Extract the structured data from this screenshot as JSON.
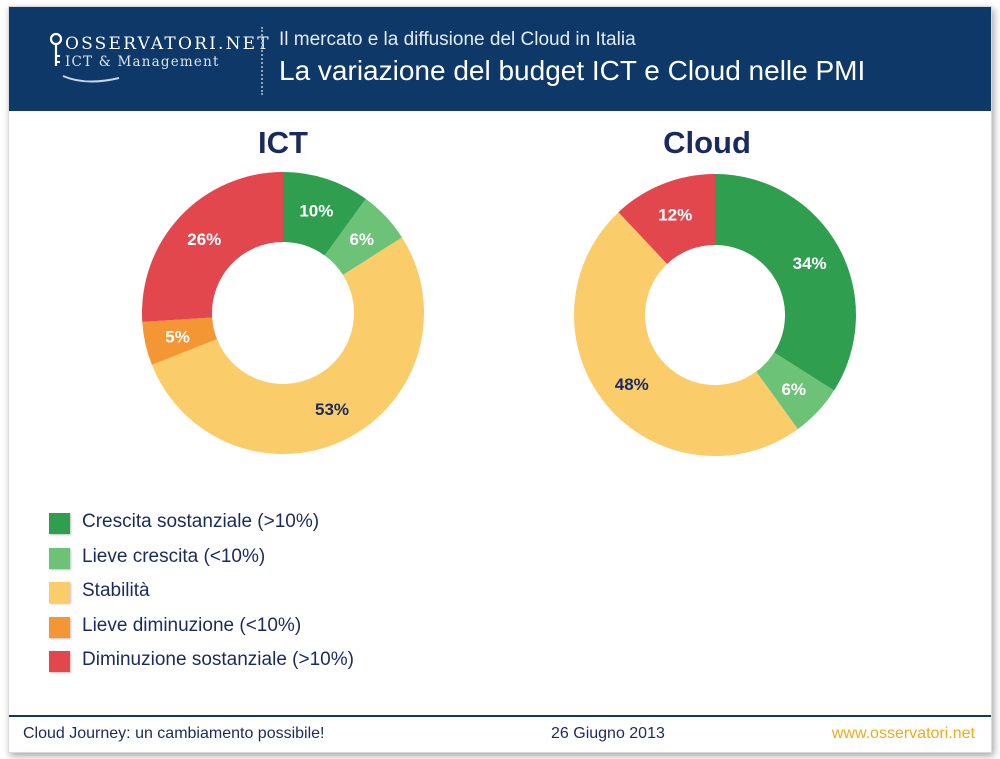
{
  "header": {
    "logo": {
      "brand": "OSSERVATORI.NET",
      "sub": "ICT & Management"
    },
    "subtitle": "Il mercato e la diffusione del Cloud in Italia",
    "title": "La variazione del budget ICT e Cloud nelle PMI"
  },
  "colors": {
    "header_bg": "#0d3868",
    "crescita_sostanziale": "#2f9e4f",
    "lieve_crescita": "#6cc276",
    "stabilita": "#fbcc6a",
    "lieve_diminuzione": "#f49634",
    "diminuzione_sostanziale": "#e2474e",
    "footer_link": "#f2a91d"
  },
  "chart_data": [
    {
      "type": "pie",
      "donut": true,
      "title": "ICT",
      "categories": [
        "Crescita sostanziale (>10%)",
        "Lieve crescita (<10%)",
        "Stabilità",
        "Lieve diminuzione (<10%)",
        "Diminuzione sostanziale (>10%)"
      ],
      "values": [
        10,
        6,
        53,
        5,
        26
      ],
      "labels": [
        "10%",
        "6%",
        "53%",
        "5%",
        "26%"
      ],
      "colors": [
        "#2f9e4f",
        "#6cc276",
        "#fbcc6a",
        "#f49634",
        "#e2474e"
      ],
      "label_colors": [
        "#ffffff",
        "#ffffff",
        "#1b2a5e",
        "#ffffff",
        "#ffffff"
      ]
    },
    {
      "type": "pie",
      "donut": true,
      "title": "Cloud",
      "categories": [
        "Crescita sostanziale (>10%)",
        "Lieve crescita (<10%)",
        "Stabilità",
        "Diminuzione sostanziale (>10%)"
      ],
      "values": [
        34,
        6,
        48,
        12
      ],
      "labels": [
        "34%",
        "6%",
        "48%",
        "12%"
      ],
      "colors": [
        "#2f9e4f",
        "#6cc276",
        "#fbcc6a",
        "#e2474e"
      ],
      "label_colors": [
        "#ffffff",
        "#ffffff",
        "#1b2a5e",
        "#ffffff"
      ]
    }
  ],
  "legend": [
    {
      "label": "Crescita sostanziale (>10%)",
      "color": "#2f9e4f"
    },
    {
      "label": "Lieve crescita (<10%)",
      "color": "#6cc276"
    },
    {
      "label": "Stabilità",
      "color": "#fbcc6a"
    },
    {
      "label": "Lieve diminuzione (<10%)",
      "color": "#f49634"
    },
    {
      "label": "Diminuzione sostanziale (>10%)",
      "color": "#e2474e"
    }
  ],
  "footer": {
    "left": "Cloud Journey: un cambiamento possibile!",
    "center": "26 Giugno 2013",
    "right": "www.osservatori.net"
  }
}
